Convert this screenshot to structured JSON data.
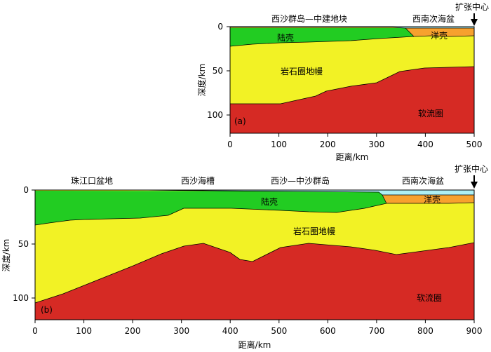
{
  "colors": {
    "water": "#aef0f4",
    "crust_continental": "#22cc22",
    "crust_oceanic": "#f7a12e",
    "mantle": "#f2f225",
    "asthenosphere": "#d62a24",
    "axis": "#000000"
  },
  "spreading_center_label": "扩张中心",
  "panel_a": {
    "tag": "(a)",
    "region_left": "西沙群岛—中建地块",
    "region_right": "西南次海盆",
    "xlabel": "距离/km",
    "ylabel": "深度/km",
    "xticks": [
      "0",
      "100",
      "200",
      "300",
      "400",
      "500"
    ],
    "yticks": [
      "0",
      "50",
      "100"
    ],
    "xlim": [
      0,
      500
    ],
    "ylim": [
      0,
      120
    ],
    "layers": {
      "continental_crust": "陆壳",
      "oceanic_crust": "洋壳",
      "mantle": "岩石圈地幔",
      "asthenosphere": "软流圈"
    }
  },
  "panel_b": {
    "tag": "(b)",
    "region_1": "珠江口盆地",
    "region_2": "西沙海槽",
    "region_3": "西沙—中沙群岛",
    "region_4": "西南次海盆",
    "xlabel": "距离/km",
    "ylabel": "深度/km",
    "xticks": [
      "0",
      "100",
      "200",
      "300",
      "400",
      "500",
      "600",
      "700",
      "800",
      "900"
    ],
    "yticks": [
      "0",
      "50",
      "100"
    ],
    "xlim": [
      0,
      900
    ],
    "ylim": [
      0,
      120
    ],
    "layers": {
      "continental_crust": "陆壳",
      "oceanic_crust": "洋壳",
      "mantle": "岩石圈地幔",
      "asthenosphere": "软流圈"
    }
  }
}
